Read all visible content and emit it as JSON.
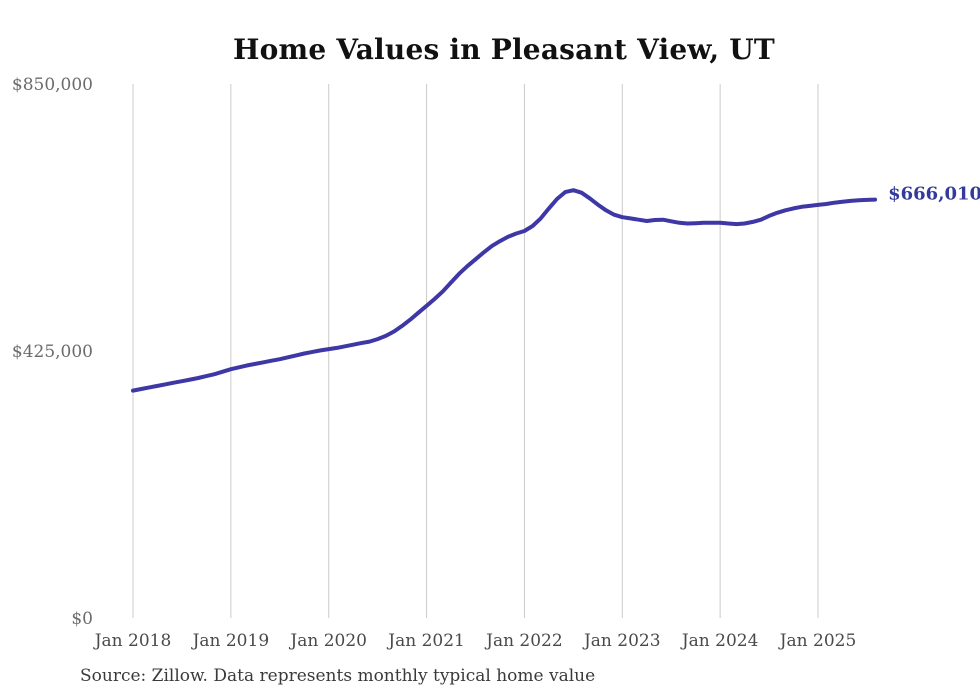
{
  "chart_data": {
    "type": "line",
    "title": "Home Values in Pleasant View, UT",
    "series_name": "Monthly typical home value",
    "x_start": "Jan 2018",
    "x_end": "Aug 2025",
    "frequency": "monthly",
    "xlabel": "",
    "ylabel": "",
    "ylim": [
      0,
      850000
    ],
    "grid": "vertical-only",
    "legend": "none",
    "end_label": "$666,010",
    "last_value": 666010,
    "values": [
      362000,
      364500,
      367000,
      369500,
      372000,
      374500,
      377000,
      379500,
      382000,
      385000,
      388000,
      392000,
      396000,
      399000,
      402000,
      404500,
      407000,
      409500,
      412000,
      415000,
      418000,
      421000,
      423500,
      426000,
      428000,
      430000,
      432500,
      435000,
      437500,
      440000,
      444000,
      449000,
      456000,
      465000,
      475000,
      486000,
      497000,
      508000,
      520000,
      534000,
      548000,
      560000,
      571000,
      582000,
      592000,
      600000,
      607000,
      612000,
      616000,
      624000,
      636000,
      652000,
      667000,
      678000,
      681000,
      677000,
      668000,
      658000,
      649000,
      642000,
      638000,
      636000,
      634000,
      632000,
      633500,
      634000,
      631500,
      629000,
      628000,
      628500,
      629000,
      629000,
      629000,
      628000,
      627000,
      628000,
      630500,
      634000,
      640000,
      645000,
      649000,
      652000,
      654500,
      656000,
      657500,
      659000,
      661000,
      662500,
      664000,
      665000,
      665500,
      666010
    ],
    "x_ticks": [
      {
        "label": "Jan 2018",
        "month_index": 0
      },
      {
        "label": "Jan 2019",
        "month_index": 12
      },
      {
        "label": "Jan 2020",
        "month_index": 24
      },
      {
        "label": "Jan 2021",
        "month_index": 36
      },
      {
        "label": "Jan 2022",
        "month_index": 48
      },
      {
        "label": "Jan 2023",
        "month_index": 60
      },
      {
        "label": "Jan 2024",
        "month_index": 72
      },
      {
        "label": "Jan 2025",
        "month_index": 84
      }
    ],
    "y_ticks": [
      {
        "label": "$850,000",
        "value": 850000
      },
      {
        "label": "$425,000",
        "value": 425000
      },
      {
        "label": "$0",
        "value": 0
      }
    ],
    "colors": {
      "line": "#3e37a6",
      "end_label": "#333a9c",
      "grid": "#cbcbcb",
      "y_tick_text": "#6b6b6b",
      "x_tick_text": "#4a4a4a",
      "title_text": "#111111",
      "source_text": "#3a3a3a",
      "background": "#ffffff"
    }
  },
  "source_note": "Source: Zillow. Data represents monthly typical home value"
}
